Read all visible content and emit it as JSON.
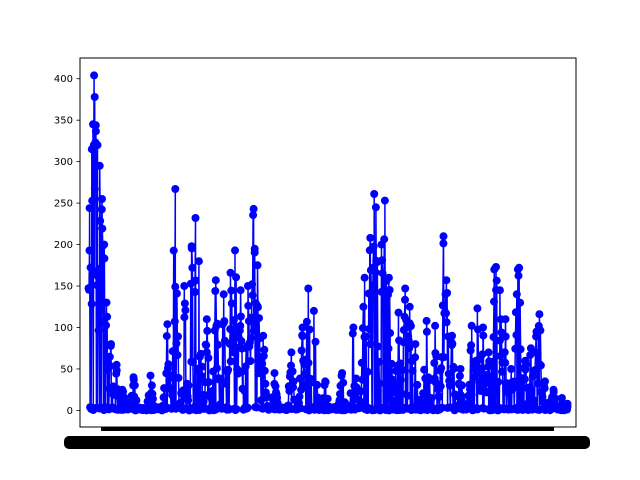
{
  "chart_data": {
    "type": "line",
    "marker": "circle",
    "title": "",
    "xlabel": "",
    "ylabel": "",
    "ylim": [
      -20,
      425
    ],
    "yticks": [
      0,
      50,
      100,
      150,
      200,
      250,
      300,
      350,
      400
    ],
    "x_tick_labels_note": "dense overlapping date labels, unreadable",
    "grid": false,
    "legend": "none",
    "series": [
      {
        "color": "#0000ff",
        "peaks": [
          {
            "x": 0.2,
            "y": 244
          },
          {
            "x": 0.6,
            "y": 315
          },
          {
            "x": 0.8,
            "y": 345
          },
          {
            "x": 1.0,
            "y": 404
          },
          {
            "x": 1.1,
            "y": 378
          },
          {
            "x": 1.3,
            "y": 344
          },
          {
            "x": 1.6,
            "y": 320
          },
          {
            "x": 2.0,
            "y": 295
          },
          {
            "x": 2.4,
            "y": 255
          },
          {
            "x": 2.8,
            "y": 200
          },
          {
            "x": 3.2,
            "y": 130
          },
          {
            "x": 4.0,
            "y": 80
          },
          {
            "x": 5.0,
            "y": 55
          },
          {
            "x": 6.0,
            "y": 25
          },
          {
            "x": 8.0,
            "y": 40
          },
          {
            "x": 11.0,
            "y": 42
          },
          {
            "x": 14.0,
            "y": 104
          },
          {
            "x": 15.4,
            "y": 267
          },
          {
            "x": 17.0,
            "y": 150
          },
          {
            "x": 18.3,
            "y": 198
          },
          {
            "x": 19.0,
            "y": 232
          },
          {
            "x": 19.6,
            "y": 180
          },
          {
            "x": 21.0,
            "y": 110
          },
          {
            "x": 22.6,
            "y": 157
          },
          {
            "x": 24.0,
            "y": 140
          },
          {
            "x": 25.2,
            "y": 166
          },
          {
            "x": 26.0,
            "y": 193
          },
          {
            "x": 27.0,
            "y": 145
          },
          {
            "x": 28.3,
            "y": 150
          },
          {
            "x": 29.3,
            "y": 243
          },
          {
            "x": 29.5,
            "y": 195
          },
          {
            "x": 30.0,
            "y": 175
          },
          {
            "x": 31.0,
            "y": 90
          },
          {
            "x": 33.0,
            "y": 45
          },
          {
            "x": 36.0,
            "y": 70
          },
          {
            "x": 38.0,
            "y": 100
          },
          {
            "x": 39.0,
            "y": 147
          },
          {
            "x": 40.0,
            "y": 120
          },
          {
            "x": 42.0,
            "y": 35
          },
          {
            "x": 45.0,
            "y": 45
          },
          {
            "x": 47.0,
            "y": 100
          },
          {
            "x": 49.0,
            "y": 160
          },
          {
            "x": 50.0,
            "y": 208
          },
          {
            "x": 50.7,
            "y": 261
          },
          {
            "x": 51.0,
            "y": 245
          },
          {
            "x": 52.0,
            "y": 200
          },
          {
            "x": 52.6,
            "y": 253
          },
          {
            "x": 53.3,
            "y": 160
          },
          {
            "x": 55.0,
            "y": 118
          },
          {
            "x": 56.2,
            "y": 147
          },
          {
            "x": 57.0,
            "y": 125
          },
          {
            "x": 58.0,
            "y": 80
          },
          {
            "x": 60.0,
            "y": 108
          },
          {
            "x": 61.5,
            "y": 102
          },
          {
            "x": 63.0,
            "y": 210
          },
          {
            "x": 63.5,
            "y": 157
          },
          {
            "x": 64.5,
            "y": 90
          },
          {
            "x": 66.0,
            "y": 50
          },
          {
            "x": 68.0,
            "y": 102
          },
          {
            "x": 69.0,
            "y": 123
          },
          {
            "x": 70.0,
            "y": 100
          },
          {
            "x": 71.0,
            "y": 70
          },
          {
            "x": 72.0,
            "y": 170
          },
          {
            "x": 72.3,
            "y": 173
          },
          {
            "x": 73.0,
            "y": 145
          },
          {
            "x": 74.0,
            "y": 110
          },
          {
            "x": 75.0,
            "y": 50
          },
          {
            "x": 76.0,
            "y": 140
          },
          {
            "x": 76.2,
            "y": 170
          },
          {
            "x": 76.4,
            "y": 172
          },
          {
            "x": 77.5,
            "y": 60
          },
          {
            "x": 78.5,
            "y": 75
          },
          {
            "x": 79.5,
            "y": 95
          },
          {
            "x": 80.0,
            "y": 116
          },
          {
            "x": 81.0,
            "y": 35
          },
          {
            "x": 82.5,
            "y": 25
          },
          {
            "x": 84.0,
            "y": 15
          },
          {
            "x": 85.0,
            "y": 8
          }
        ]
      }
    ]
  }
}
